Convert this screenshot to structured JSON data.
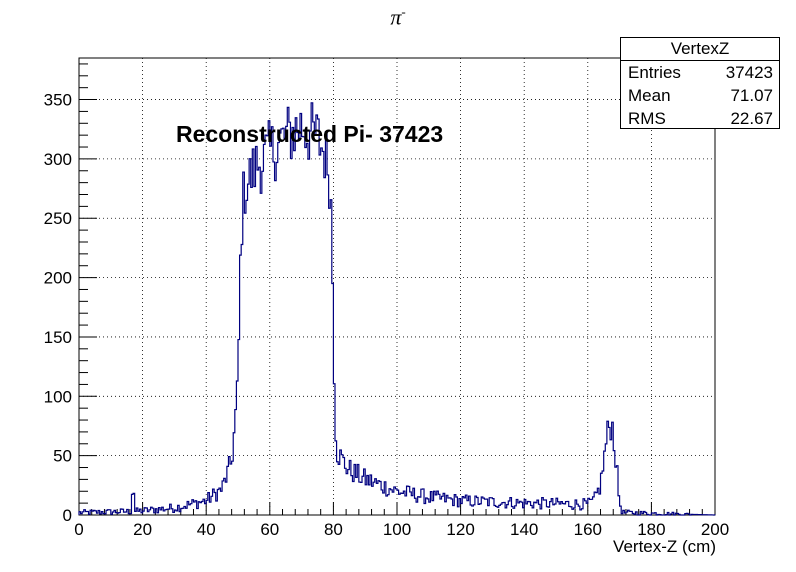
{
  "title": "π",
  "title_superscript": "-",
  "annotation": "Reconstructed Pi- 37423",
  "stats": {
    "name": "VertexZ",
    "rows": [
      {
        "label": "Entries",
        "value": "37423"
      },
      {
        "label": "Mean",
        "value": "71.07"
      },
      {
        "label": "RMS",
        "value": "22.67"
      }
    ]
  },
  "chart_data": {
    "type": "histogram",
    "xlabel": "Vertex-Z (cm)",
    "ylabel": "",
    "xlim": [
      0,
      200
    ],
    "ylim": [
      0,
      385
    ],
    "x_ticks": [
      0,
      20,
      40,
      60,
      80,
      100,
      120,
      140,
      160,
      180,
      200
    ],
    "y_ticks": [
      0,
      50,
      100,
      150,
      200,
      250,
      300,
      350
    ],
    "grid": true,
    "line_color": "#000080",
    "bin_width": 0.5,
    "profile_points": [
      [
        0,
        2
      ],
      [
        16.5,
        3
      ],
      [
        17,
        37
      ],
      [
        17.5,
        3
      ],
      [
        30,
        6
      ],
      [
        40,
        12
      ],
      [
        45,
        22
      ],
      [
        48,
        45
      ],
      [
        49,
        75
      ],
      [
        50,
        110
      ],
      [
        50.5,
        180
      ],
      [
        51,
        240
      ],
      [
        52,
        275
      ],
      [
        54,
        285
      ],
      [
        56,
        295
      ],
      [
        60,
        305
      ],
      [
        65,
        318
      ],
      [
        70,
        328
      ],
      [
        72,
        322
      ],
      [
        75,
        318
      ],
      [
        78,
        300
      ],
      [
        79,
        280
      ],
      [
        79.5,
        240
      ],
      [
        80,
        160
      ],
      [
        80.5,
        90
      ],
      [
        81,
        55
      ],
      [
        83,
        45
      ],
      [
        85,
        38
      ],
      [
        90,
        30
      ],
      [
        95,
        25
      ],
      [
        100,
        20
      ],
      [
        110,
        15
      ],
      [
        120,
        12
      ],
      [
        140,
        10
      ],
      [
        160,
        9
      ],
      [
        162,
        12
      ],
      [
        164,
        25
      ],
      [
        165,
        45
      ],
      [
        166,
        65
      ],
      [
        167,
        78
      ],
      [
        168,
        72
      ],
      [
        169,
        40
      ],
      [
        170,
        10
      ],
      [
        171,
        2
      ],
      [
        200,
        0
      ]
    ]
  }
}
